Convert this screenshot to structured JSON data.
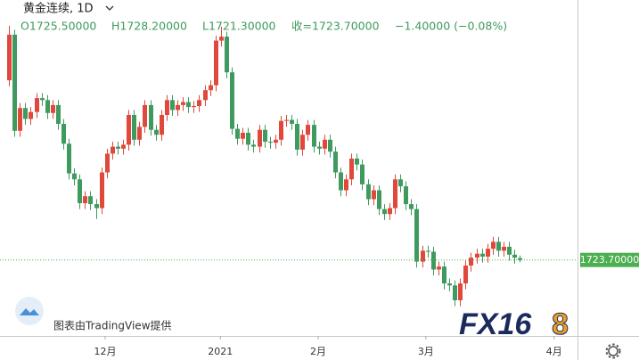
{
  "header": {
    "symbol": "黄金连续, 1D",
    "open": "O1725.50000",
    "high": "H1728.20000",
    "low": "L1721.30000",
    "close": "收=1723.70000",
    "change": "−1.40000 (−0.08%)"
  },
  "watermark": {
    "credit": "图表由TradingView提供",
    "brand_main": "FX16",
    "brand_tail": "8"
  },
  "chart_data": {
    "type": "candlestick",
    "up_color": "#e0483b",
    "down_color": "#3f9a5f",
    "xlim": [
      -1.64,
      104.6
    ],
    "xticks": [
      {
        "value": 17.7,
        "label": "12月"
      },
      {
        "value": 38.9,
        "label": "2021"
      },
      {
        "value": 56.9,
        "label": "2月"
      },
      {
        "value": 76.7,
        "label": "3月"
      },
      {
        "value": 100.3,
        "label": "4月"
      }
    ],
    "ylim": [
      1647,
      1986
    ],
    "price_line": {
      "value": 1723.7,
      "label": "1723.70000",
      "color": "#4caf50"
    },
    "open": [
      1905,
      1951,
      1854,
      1877,
      1866,
      1873,
      1887,
      1885,
      1872,
      1880,
      1861,
      1841,
      1811,
      1805,
      1781,
      1788,
      1780,
      1776,
      1812,
      1831,
      1838,
      1836,
      1840,
      1870,
      1845,
      1858,
      1880,
      1855,
      1850,
      1870,
      1885,
      1875,
      1880,
      1883,
      1878,
      1879,
      1885,
      1895,
      1900,
      1945,
      1949,
      1913,
      1856,
      1846,
      1852,
      1840,
      1838,
      1855,
      1843,
      1842,
      1845,
      1864,
      1865,
      1861,
      1835,
      1850,
      1860,
      1838,
      1836,
      1845,
      1833,
      1812,
      1794,
      1805,
      1826,
      1820,
      1800,
      1785,
      1794,
      1775,
      1770,
      1776,
      1805,
      1798,
      1780,
      1775,
      1722,
      1733,
      1732,
      1714,
      1717,
      1700,
      1698,
      1683,
      1700,
      1718,
      1726,
      1730,
      1727,
      1735,
      1742,
      1733,
      1737,
      1729,
      1725.5
    ],
    "high": [
      1960,
      1956,
      1882,
      1882,
      1878,
      1892,
      1892,
      1890,
      1885,
      1885,
      1866,
      1846,
      1816,
      1810,
      1793,
      1793,
      1785,
      1817,
      1836,
      1843,
      1843,
      1845,
      1875,
      1875,
      1863,
      1885,
      1885,
      1860,
      1875,
      1890,
      1890,
      1885,
      1888,
      1888,
      1884,
      1890,
      1900,
      1905,
      1950,
      1959,
      1954,
      1918,
      1861,
      1857,
      1857,
      1845,
      1860,
      1860,
      1848,
      1850,
      1869,
      1870,
      1870,
      1866,
      1855,
      1865,
      1865,
      1843,
      1850,
      1850,
      1838,
      1817,
      1810,
      1831,
      1831,
      1825,
      1805,
      1799,
      1799,
      1780,
      1781,
      1810,
      1810,
      1803,
      1785,
      1780,
      1738,
      1738,
      1737,
      1722,
      1722,
      1705,
      1703,
      1705,
      1723,
      1731,
      1735,
      1735,
      1740,
      1747,
      1747,
      1742,
      1742,
      1734,
      1728.2
    ],
    "low": [
      1899,
      1848,
      1848,
      1860,
      1860,
      1867,
      1879,
      1866,
      1866,
      1855,
      1835,
      1805,
      1799,
      1775,
      1775,
      1774,
      1765,
      1770,
      1806,
      1825,
      1830,
      1830,
      1834,
      1839,
      1839,
      1852,
      1849,
      1844,
      1844,
      1864,
      1869,
      1869,
      1874,
      1872,
      1872,
      1873,
      1879,
      1889,
      1894,
      1939,
      1907,
      1850,
      1840,
      1840,
      1834,
      1832,
      1832,
      1837,
      1836,
      1836,
      1839,
      1858,
      1855,
      1829,
      1829,
      1844,
      1832,
      1830,
      1830,
      1827,
      1806,
      1788,
      1788,
      1799,
      1814,
      1794,
      1779,
      1779,
      1769,
      1764,
      1764,
      1770,
      1792,
      1774,
      1769,
      1716,
      1716,
      1726,
      1708,
      1708,
      1694,
      1692,
      1677,
      1677,
      1694,
      1712,
      1720,
      1721,
      1721,
      1729,
      1727,
      1727,
      1723,
      1720,
      1721.3
    ],
    "close": [
      1951,
      1854,
      1877,
      1866,
      1873,
      1887,
      1885,
      1872,
      1880,
      1861,
      1841,
      1811,
      1805,
      1781,
      1788,
      1780,
      1776,
      1812,
      1831,
      1838,
      1836,
      1840,
      1870,
      1845,
      1858,
      1880,
      1855,
      1850,
      1870,
      1885,
      1875,
      1880,
      1883,
      1878,
      1879,
      1885,
      1895,
      1900,
      1945,
      1949,
      1913,
      1856,
      1846,
      1852,
      1840,
      1838,
      1855,
      1843,
      1842,
      1845,
      1864,
      1865,
      1861,
      1835,
      1850,
      1860,
      1838,
      1836,
      1845,
      1833,
      1812,
      1794,
      1805,
      1826,
      1820,
      1800,
      1785,
      1794,
      1775,
      1770,
      1776,
      1805,
      1798,
      1780,
      1775,
      1722,
      1733,
      1732,
      1714,
      1717,
      1700,
      1698,
      1683,
      1700,
      1718,
      1726,
      1730,
      1727,
      1735,
      1742,
      1733,
      1737,
      1729,
      1726,
      1723.7
    ]
  }
}
